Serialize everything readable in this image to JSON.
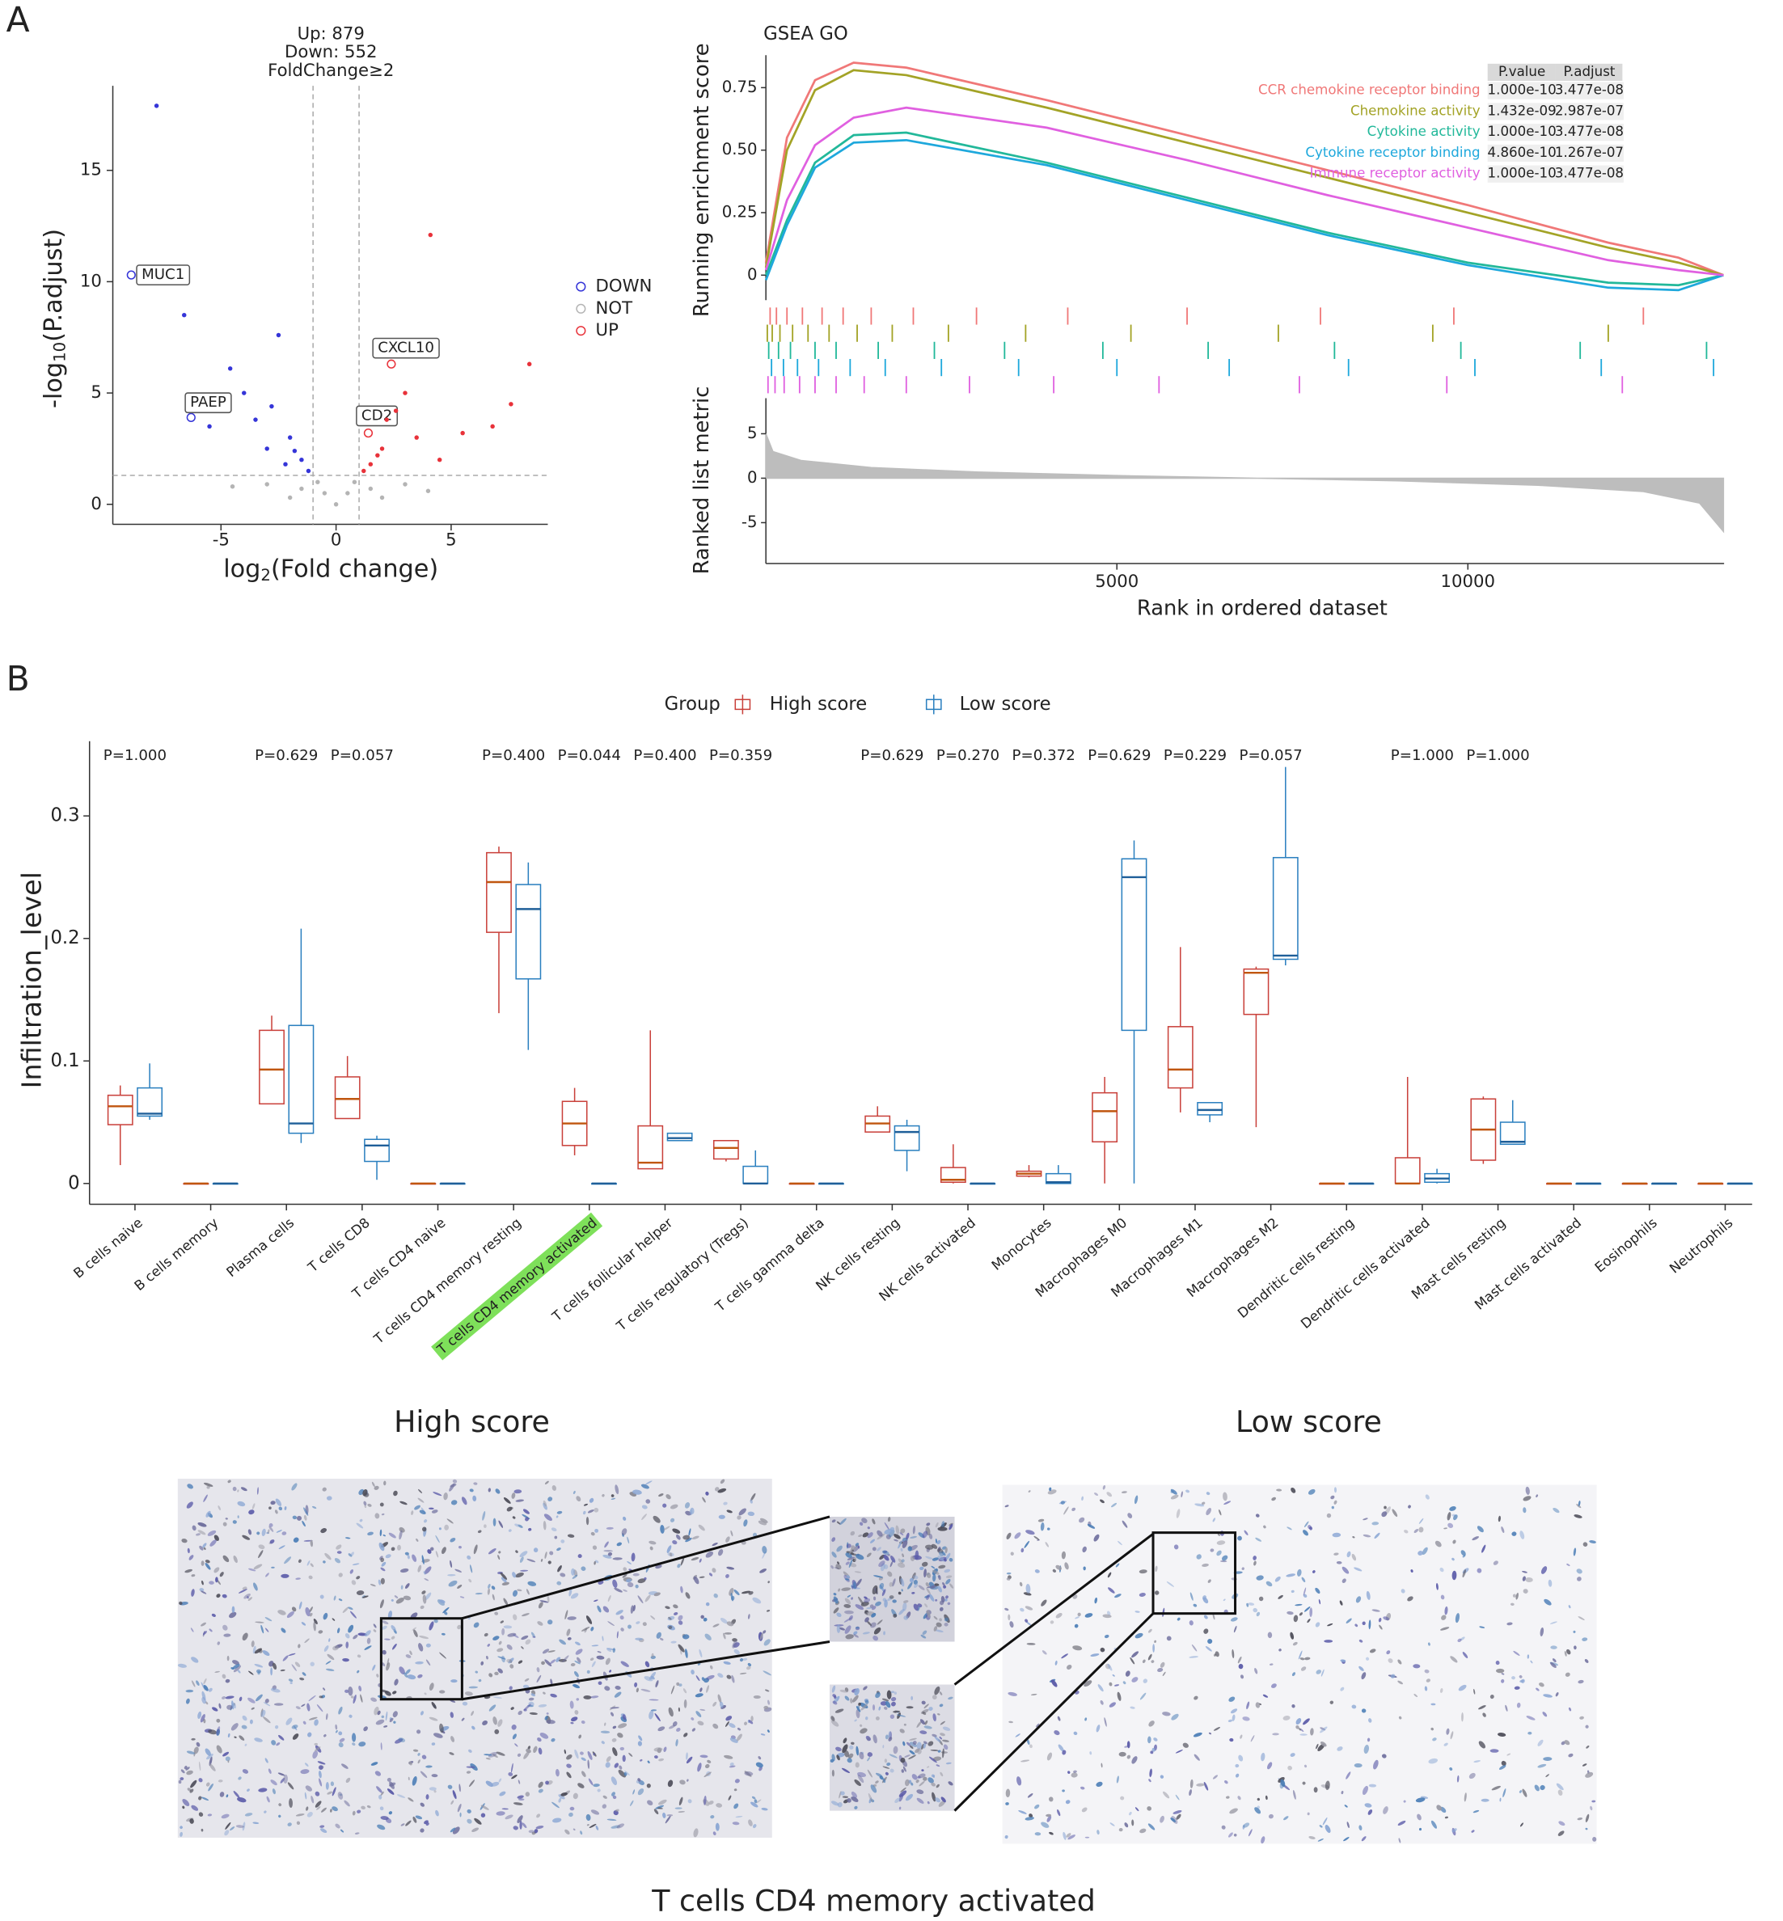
{
  "panels": [
    "A",
    "B"
  ],
  "chart_data": [
    {
      "type": "scatter",
      "title": [
        "Up: 879",
        "Down: 552",
        "FoldChange≥2"
      ],
      "xlabel": [
        "log",
        "2",
        "(Fold change)"
      ],
      "ylabel": [
        "-log",
        "10",
        "(P.adjust)"
      ],
      "xlim": [
        -9.7,
        9.2
      ],
      "ylim": [
        -0.9,
        18.8
      ],
      "xticks": [
        -5,
        0,
        5
      ],
      "yticks": [
        0,
        5,
        10,
        15
      ],
      "thresholds": {
        "x": [
          -1,
          1
        ],
        "y": 1.3
      },
      "legend": "right",
      "series": [
        {
          "name": "DOWN",
          "color": "#3535d8",
          "x": [
            -8.9,
            -6.3,
            -7.8,
            -6.6,
            -2.5,
            -4.0,
            -2.0,
            -1.5,
            -3.0,
            -1.2,
            -5.5,
            -3.5,
            -2.2,
            -4.6,
            -1.8,
            -2.8
          ],
          "y": [
            10.3,
            3.9,
            17.9,
            8.5,
            7.6,
            5.0,
            3.0,
            2.0,
            2.5,
            1.5,
            3.5,
            3.8,
            1.8,
            6.1,
            2.4,
            4.4
          ],
          "labels": [
            "MUC1",
            "PAEP",
            null,
            null,
            null,
            null,
            null,
            null,
            null,
            null,
            null,
            null,
            null,
            null,
            null,
            null
          ]
        },
        {
          "name": "NOT",
          "color": "#b4b4b4",
          "x": [
            0,
            -0.5,
            0.5,
            -1.5,
            1.5,
            -3,
            3,
            -0.8,
            0.8,
            -2,
            2,
            4,
            -4.5
          ],
          "y": [
            0,
            0.5,
            0.5,
            0.7,
            0.7,
            0.9,
            0.9,
            1.0,
            1.0,
            0.3,
            0.3,
            0.6,
            0.8
          ]
        },
        {
          "name": "UP",
          "color": "#e8323a",
          "x": [
            2.4,
            1.4,
            4.1,
            8.4,
            7.6,
            3.0,
            2.0,
            1.5,
            3.5,
            5.5,
            1.2,
            2.6,
            6.8,
            1.8,
            2.2,
            4.5
          ],
          "y": [
            6.3,
            3.2,
            12.1,
            6.3,
            4.5,
            5.0,
            2.5,
            1.8,
            3.0,
            3.2,
            1.5,
            4.2,
            3.5,
            2.2,
            3.8,
            2.0
          ],
          "labels": [
            "CXCL10",
            "CD2",
            null,
            null,
            null,
            null,
            null,
            null,
            null,
            null,
            null,
            null,
            null,
            null,
            null,
            null
          ]
        }
      ]
    },
    {
      "type": "line",
      "title": "GSEA GO",
      "ylabel": "Running enrichment score",
      "xlabel": "Rank in ordered dataset",
      "xlim": [
        0,
        13650
      ],
      "ylim": [
        -0.1,
        0.88
      ],
      "xticks": [
        5000,
        10000
      ],
      "yticks": [
        0,
        0.25,
        {
          "value": 0.5,
          "label": "0.50"
        },
        0.75
      ],
      "x": [
        0,
        300,
        700,
        1250,
        2000,
        4000,
        6000,
        8000,
        10000,
        12000,
        13000,
        13641
      ],
      "table_columns": [
        "P.value",
        "P.adjust"
      ],
      "series": [
        {
          "name": "CCR chemokine receptor binding",
          "color": "#f07878",
          "p_value": "1.000e-10",
          "p_adjust": "3.477e-08",
          "values": [
            0.05,
            0.55,
            0.78,
            0.85,
            0.83,
            0.7,
            0.56,
            0.42,
            0.28,
            0.13,
            0.07,
            0.0
          ],
          "hits": [
            60,
            150,
            300,
            520,
            800,
            1100,
            1500,
            2100,
            3000,
            4300,
            6000,
            7900,
            9800,
            12500
          ]
        },
        {
          "name": "Chemokine activity",
          "color": "#a3a326",
          "p_value": "1.432e-09",
          "p_adjust": "2.987e-07",
          "values": [
            0.03,
            0.5,
            0.74,
            0.82,
            0.8,
            0.67,
            0.53,
            0.39,
            0.25,
            0.11,
            0.05,
            0.0
          ],
          "hits": [
            20,
            90,
            200,
            380,
            600,
            900,
            1300,
            1800,
            2600,
            3700,
            5200,
            7300,
            9500,
            12000
          ]
        },
        {
          "name": "Cytokine activity",
          "color": "#22b89a",
          "p_value": "1.000e-10",
          "p_adjust": "3.477e-08",
          "values": [
            0.0,
            0.22,
            0.45,
            0.56,
            0.57,
            0.45,
            0.31,
            0.17,
            0.05,
            -0.03,
            -0.04,
            0.0
          ],
          "hits": [
            40,
            180,
            350,
            700,
            1000,
            1600,
            2400,
            3400,
            4800,
            6300,
            8100,
            9900,
            11600,
            13400
          ]
        },
        {
          "name": "Cytokine receptor binding",
          "color": "#1ea8dc",
          "p_value": "4.860e-10",
          "p_adjust": "1.267e-07",
          "values": [
            -0.02,
            0.2,
            0.43,
            0.53,
            0.54,
            0.44,
            0.3,
            0.16,
            0.04,
            -0.05,
            -0.06,
            0.0
          ],
          "hits": [
            80,
            250,
            450,
            750,
            1200,
            1700,
            2500,
            3600,
            5000,
            6600,
            8300,
            10100,
            11900,
            13500
          ]
        },
        {
          "name": "Immune receptor activity",
          "color": "#e060e0",
          "p_value": "1.000e-10",
          "p_adjust": "3.477e-08",
          "values": [
            0.02,
            0.3,
            0.52,
            0.63,
            0.67,
            0.59,
            0.46,
            0.32,
            0.19,
            0.06,
            0.02,
            0.0
          ],
          "hits": [
            30,
            130,
            260,
            480,
            700,
            1000,
            1400,
            2000,
            2900,
            4100,
            5600,
            7600,
            9700,
            12200
          ]
        }
      ],
      "metric": {
        "ylabel": "Ranked list metric",
        "ylim": [
          -9.6,
          9.0
        ],
        "yticks": [
          5,
          0,
          -5
        ],
        "color": "#bdbdbd",
        "x": [
          0,
          100,
          500,
          1500,
          3000,
          5000,
          7000,
          9000,
          11000,
          12500,
          13300,
          13641
        ],
        "values": [
          5.0,
          3.0,
          2.0,
          1.2,
          0.7,
          0.3,
          0.0,
          -0.3,
          -0.8,
          -1.5,
          -2.8,
          -6.0
        ]
      }
    },
    {
      "type": "box",
      "ylabel": "Infiltration_level",
      "ylim": [
        -0.017,
        0.361
      ],
      "yticks": [
        0,
        0.1,
        0.2,
        0.3
      ],
      "legend_title": "Group",
      "highlighted": 6,
      "highlight_color": "#7ee05a",
      "categories": [
        "B cells naive",
        "B cells memory",
        "Plasma cells",
        "T cells CD8",
        "T cells CD4 naive",
        "T cells CD4 memory resting",
        "T cells CD4 memory activated",
        "T cells follicular helper",
        "T cells regulatory (Tregs)",
        "T cells gamma delta",
        "NK cells resting",
        "NK cells activated",
        "Monocytes",
        "Macrophages M0",
        "Macrophages M1",
        "Macrophages M2",
        "Dendritic cells resting",
        "Dendritic cells activated",
        "Mast cells resting",
        "Mast cells activated",
        "Eosinophils",
        "Neutrophils"
      ],
      "pvalues": [
        "P=1.000",
        null,
        "P=0.629",
        "P=0.057",
        null,
        "P=0.400",
        "P=0.044",
        "P=0.400",
        "P=0.359",
        null,
        "P=0.629",
        "P=0.270",
        "P=0.372",
        "P=0.629",
        "P=0.229",
        "P=0.057",
        null,
        "P=1.000",
        "P=1.000",
        null,
        null,
        null
      ],
      "series": [
        {
          "name": "High score",
          "color": "#c9403a",
          "median_color": "#c0560f",
          "values": [
            [
              0.015,
              0.048,
              0.063,
              0.072,
              0.08
            ],
            [
              0,
              0,
              0,
              0,
              0
            ],
            [
              0.065,
              0.065,
              0.093,
              0.125,
              0.137
            ],
            [
              0.053,
              0.053,
              0.069,
              0.087,
              0.104
            ],
            [
              0,
              0,
              0,
              0,
              0
            ],
            [
              0.139,
              0.205,
              0.246,
              0.27,
              0.275
            ],
            [
              0.023,
              0.031,
              0.049,
              0.067,
              0.078
            ],
            [
              0.012,
              0.012,
              0.017,
              0.047,
              0.125
            ],
            [
              0.018,
              0.02,
              0.029,
              0.035,
              0.035
            ],
            [
              0,
              0,
              0,
              0,
              0
            ],
            [
              0.042,
              0.042,
              0.049,
              0.055,
              0.063
            ],
            [
              0,
              0.001,
              0.003,
              0.013,
              0.032
            ],
            [
              0.005,
              0.006,
              0.008,
              0.01,
              0.015
            ],
            [
              0,
              0.034,
              0.059,
              0.074,
              0.087
            ],
            [
              0.058,
              0.078,
              0.093,
              0.128,
              0.193
            ],
            [
              0.046,
              0.138,
              0.172,
              0.175,
              0.177
            ],
            [
              0,
              0,
              0,
              0,
              0
            ],
            [
              0,
              0,
              0,
              0.021,
              0.087
            ],
            [
              0.016,
              0.019,
              0.044,
              0.069,
              0.071
            ],
            [
              0,
              0,
              0,
              0,
              0
            ],
            [
              0,
              0,
              0,
              0,
              0
            ],
            [
              0,
              0,
              0,
              0,
              0
            ]
          ]
        },
        {
          "name": "Low score",
          "color": "#2a7fbf",
          "median_color": "#1f5f99",
          "values": [
            [
              0.052,
              0.055,
              0.057,
              0.078,
              0.098
            ],
            [
              0,
              0,
              0,
              0,
              0
            ],
            [
              0.033,
              0.041,
              0.049,
              0.129,
              0.208
            ],
            [
              0.003,
              0.018,
              0.031,
              0.036,
              0.039
            ],
            [
              0,
              0,
              0,
              0,
              0
            ],
            [
              0.109,
              0.167,
              0.224,
              0.244,
              0.262
            ],
            [
              0,
              0,
              0,
              0,
              0
            ],
            [
              0.035,
              0.035,
              0.037,
              0.041,
              0.041
            ],
            [
              0,
              0,
              0,
              0.014,
              0.027
            ],
            [
              0,
              0,
              0,
              0,
              0
            ],
            [
              0.01,
              0.027,
              0.042,
              0.047,
              0.052
            ],
            [
              0,
              0,
              0,
              0,
              0
            ],
            [
              0,
              0,
              0.001,
              0.008,
              0.015
            ],
            [
              0,
              0.125,
              0.25,
              0.265,
              0.28
            ],
            [
              0.05,
              0.056,
              0.06,
              0.066,
              0.066
            ],
            [
              0.178,
              0.183,
              0.186,
              0.266,
              0.34
            ],
            [
              0,
              0,
              0,
              0,
              0
            ],
            [
              0,
              0.001,
              0.004,
              0.008,
              0.012
            ],
            [
              0.032,
              0.032,
              0.034,
              0.05,
              0.068
            ],
            [
              0,
              0,
              0,
              0,
              0
            ],
            [
              0,
              0,
              0,
              0,
              0
            ],
            [
              0,
              0,
              0,
              0,
              0
            ]
          ]
        }
      ]
    }
  ],
  "micrographs": {
    "left_title": "High score",
    "right_title": "Low score",
    "caption": "T cells CD4 memory activated"
  }
}
